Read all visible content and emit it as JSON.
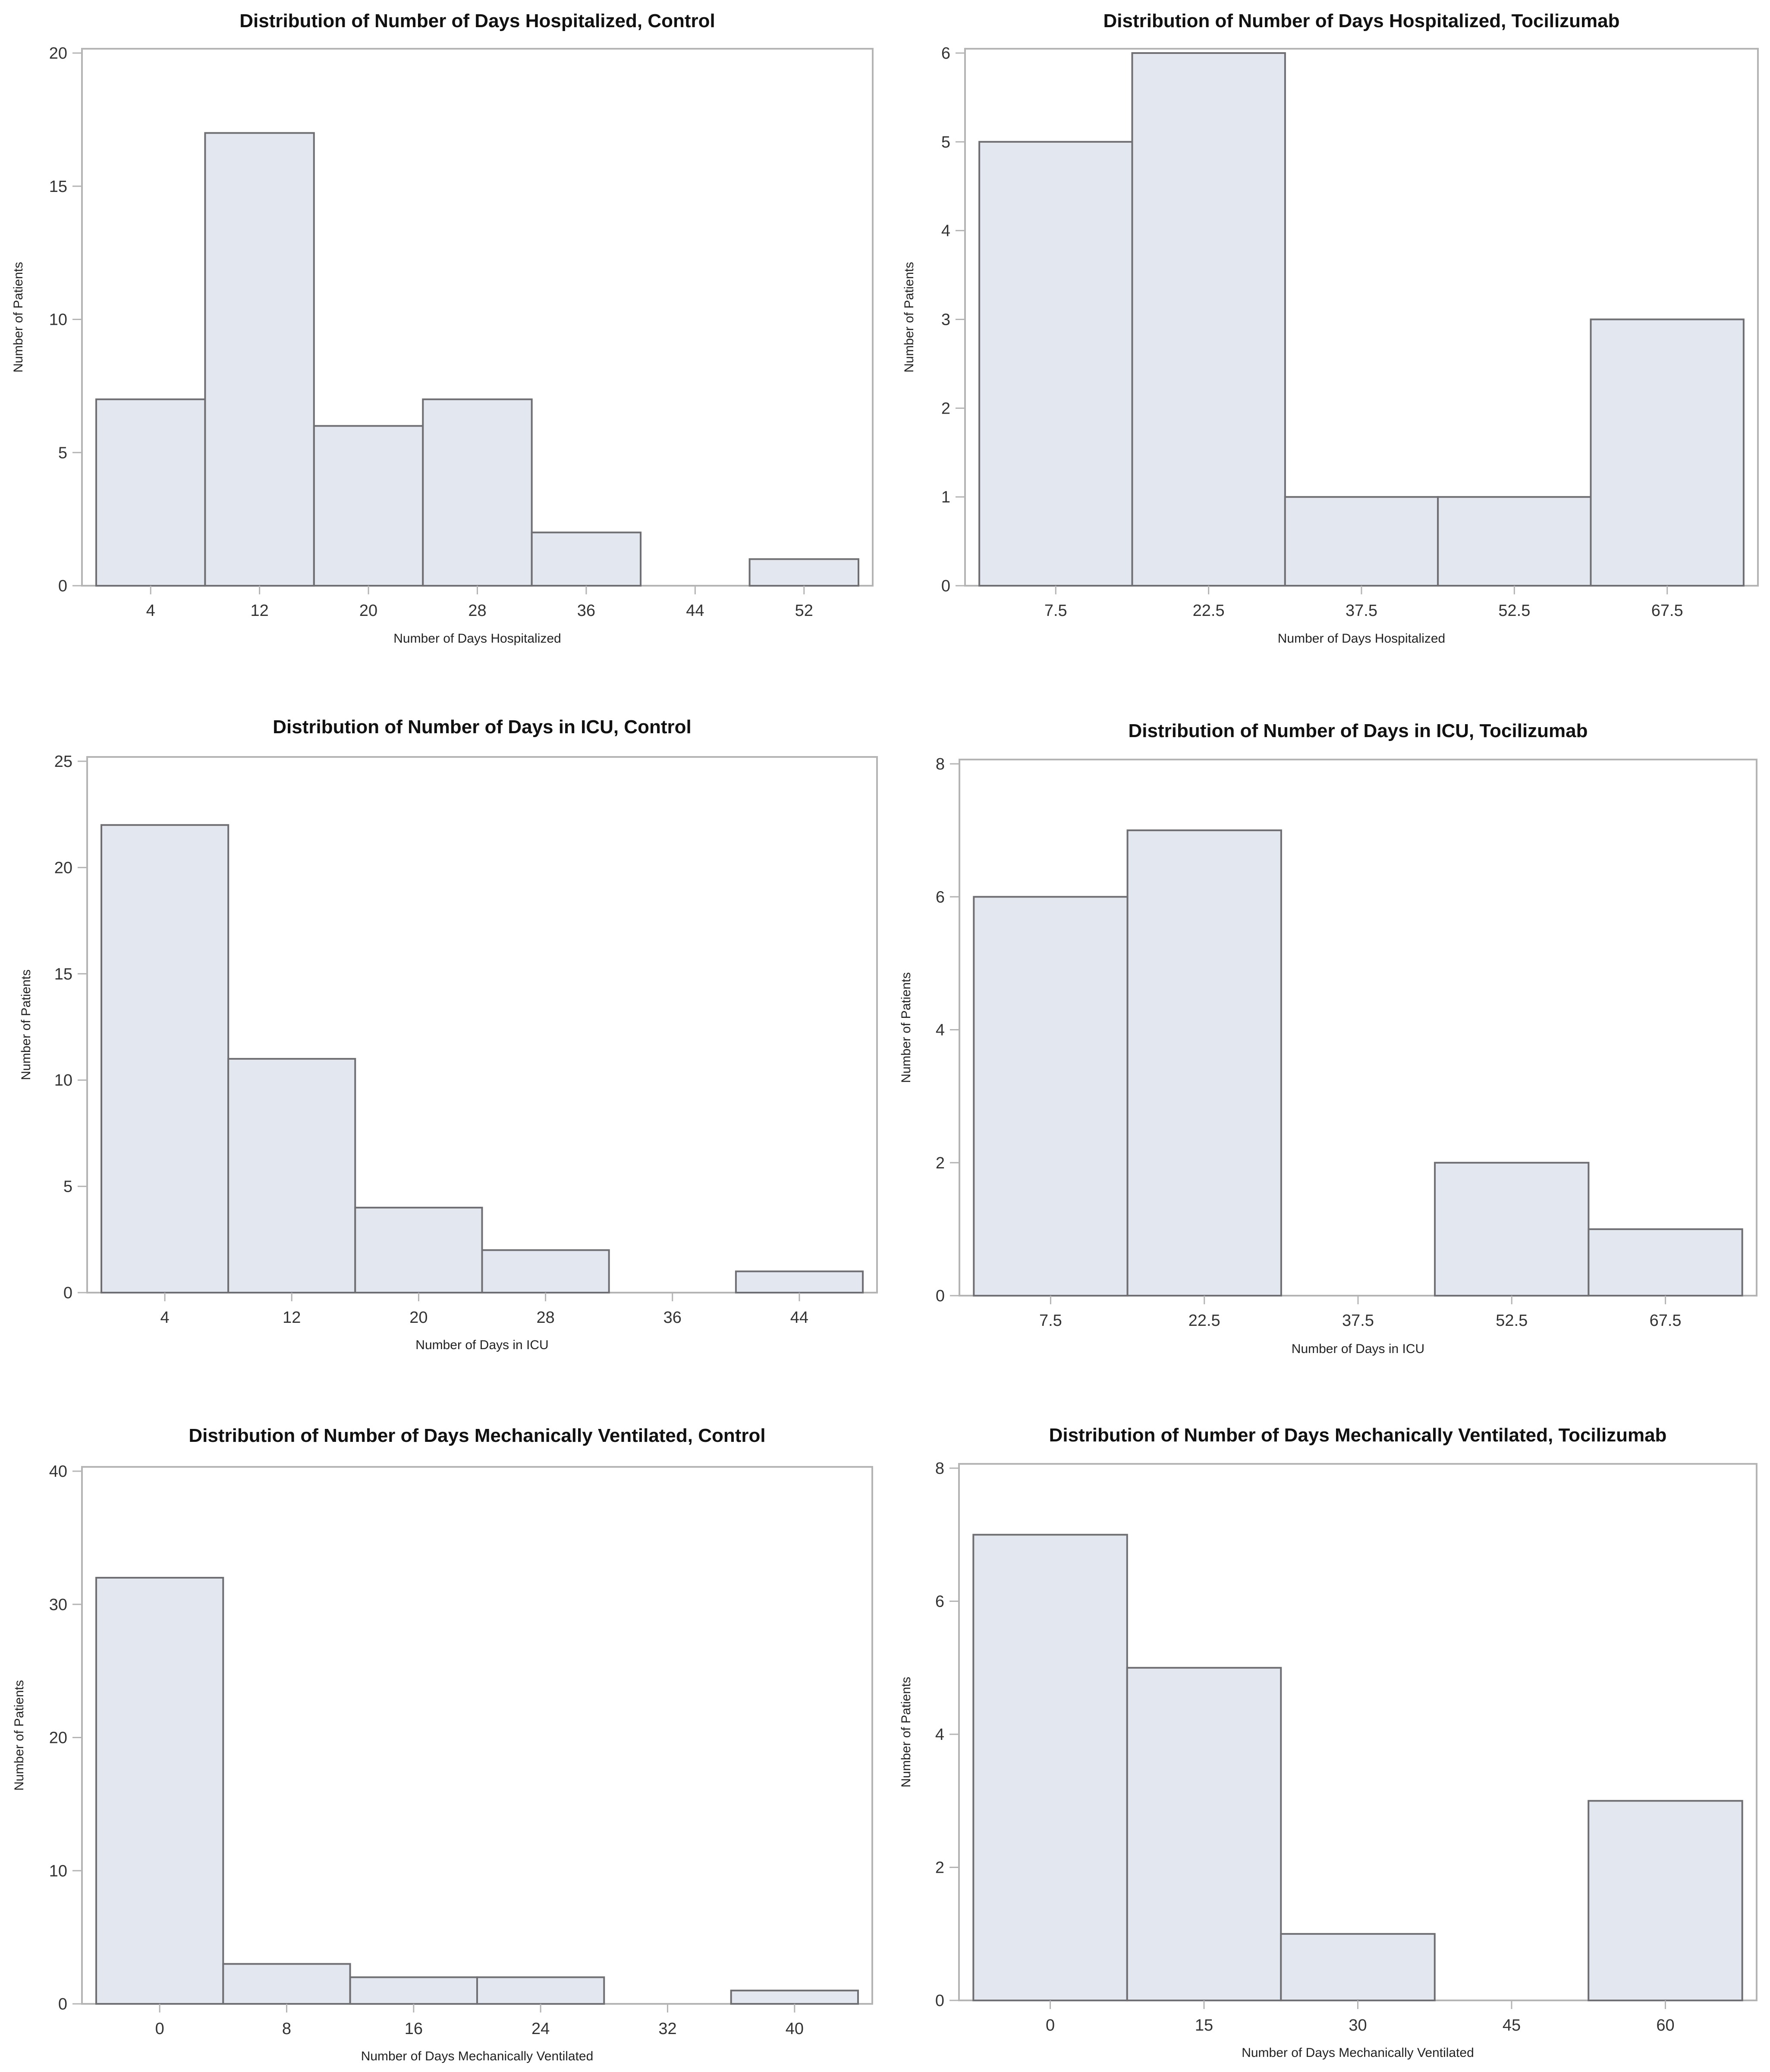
{
  "colors": {
    "bar_fill": "#e3e7f0",
    "bar_edge": "#6f6f73",
    "frame": "#b4b4b4",
    "text": "#111111"
  },
  "chart_data": [
    {
      "type": "bar",
      "title": "Distribution of Number of Days Hospitalized, Control",
      "xlabel": "Number of Days Hospitalized",
      "ylabel": "Number of Patients",
      "categories": [
        "4",
        "12",
        "20",
        "28",
        "36",
        "44",
        "52"
      ],
      "values": [
        7,
        17,
        6,
        7,
        2,
        0,
        1
      ],
      "ylim": [
        0,
        20
      ],
      "yticks": [
        0,
        5,
        10,
        15,
        20
      ],
      "grid": false
    },
    {
      "type": "bar",
      "title": "Distribution of Number of Days Hospitalized, Tocilizumab",
      "xlabel": "Number of Days Hospitalized",
      "ylabel": "Number of Patients",
      "categories": [
        "7.5",
        "22.5",
        "37.5",
        "52.5",
        "67.5"
      ],
      "values": [
        5,
        6,
        1,
        1,
        3
      ],
      "ylim": [
        0,
        6
      ],
      "yticks": [
        0,
        1,
        2,
        3,
        4,
        5,
        6
      ],
      "grid": false
    },
    {
      "type": "bar",
      "title": "Distribution of Number of Days in ICU, Control",
      "xlabel": "Number of Days in ICU",
      "ylabel": "Number of Patients",
      "categories": [
        "4",
        "12",
        "20",
        "28",
        "36",
        "44"
      ],
      "values": [
        22,
        11,
        4,
        2,
        0,
        1
      ],
      "ylim": [
        0,
        25
      ],
      "yticks": [
        0,
        5,
        10,
        15,
        20,
        25
      ],
      "grid": false
    },
    {
      "type": "bar",
      "title": "Distribution of Number of Days in ICU, Tocilizumab",
      "xlabel": "Number of Days in ICU",
      "ylabel": "Number of Patients",
      "categories": [
        "7.5",
        "22.5",
        "37.5",
        "52.5",
        "67.5"
      ],
      "values": [
        6,
        7,
        0,
        2,
        1
      ],
      "ylim": [
        0,
        8
      ],
      "yticks": [
        0,
        2,
        4,
        6,
        8
      ],
      "grid": false
    },
    {
      "type": "bar",
      "title": "Distribution of Number of Days Mechanically Ventilated, Control",
      "xlabel": "Number of Days Mechanically Ventilated",
      "ylabel": "Number of Patients",
      "categories": [
        "0",
        "8",
        "16",
        "24",
        "32",
        "40"
      ],
      "values": [
        32,
        3,
        2,
        2,
        0,
        1
      ],
      "ylim": [
        0,
        40
      ],
      "yticks": [
        0,
        10,
        20,
        30,
        40
      ],
      "grid": false
    },
    {
      "type": "bar",
      "title": "Distribution of Number of Days Mechanically Ventilated, Tocilizumab",
      "xlabel": "Number of Days Mechanically Ventilated",
      "ylabel": "Number of Patients",
      "categories": [
        "0",
        "15",
        "30",
        "45",
        "60"
      ],
      "values": [
        7,
        5,
        1,
        0,
        3
      ],
      "ylim": [
        0,
        8
      ],
      "yticks": [
        0,
        2,
        4,
        6,
        8
      ],
      "grid": false
    }
  ]
}
